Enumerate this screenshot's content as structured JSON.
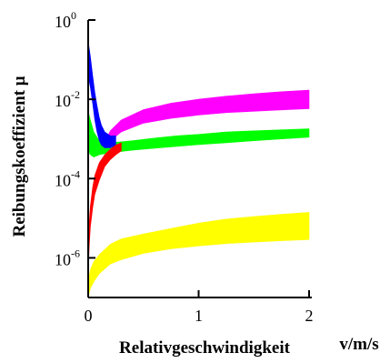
{
  "chart_data": {
    "type": "area",
    "title": "",
    "xlabel": "Relativgeschwindigkeit",
    "xunit": "v/m/s",
    "ylabel": "Reibungskoeffizient μ",
    "xlim": [
      0,
      2
    ],
    "ylim_log10": [
      -7,
      0
    ],
    "yscale": "log",
    "grid": false,
    "legend": "none",
    "x_ticks": [
      "0",
      "1",
      "2"
    ],
    "y_ticks": [
      {
        "base": "10",
        "exp": "0"
      },
      {
        "base": "10",
        "exp": "-2"
      },
      {
        "base": "10",
        "exp": "-4"
      },
      {
        "base": "10",
        "exp": "-6"
      }
    ],
    "series": [
      {
        "color": "#ff00ff",
        "x": [
          0.15,
          0.2,
          0.3,
          0.5,
          0.75,
          1.0,
          1.25,
          1.5,
          1.75,
          2.0
        ],
        "y_lower": [
          0.0006,
          0.0009,
          0.0015,
          0.0025,
          0.0033,
          0.004,
          0.0046,
          0.005,
          0.0054,
          0.0058
        ],
        "y_upper": [
          0.0008,
          0.0016,
          0.003,
          0.0055,
          0.008,
          0.01,
          0.012,
          0.0138,
          0.0155,
          0.017
        ]
      },
      {
        "color": "#00ff00",
        "x": [
          0.0,
          0.02,
          0.05,
          0.1,
          0.2,
          0.4,
          0.6,
          0.8,
          1.0,
          1.25,
          1.5,
          1.75,
          2.0
        ],
        "y_lower": [
          0.0005,
          0.0004,
          0.00035,
          0.0004,
          0.00045,
          0.00052,
          0.00058,
          0.00065,
          0.00072,
          0.0008,
          0.0009,
          0.001,
          0.0011
        ],
        "y_upper": [
          0.005,
          0.003,
          0.0015,
          0.0009,
          0.0008,
          0.0009,
          0.00105,
          0.0012,
          0.0013,
          0.0015,
          0.0016,
          0.0017,
          0.0018
        ]
      },
      {
        "color": "#0000ff",
        "x": [
          0.0,
          0.02,
          0.04,
          0.06,
          0.08,
          0.1,
          0.12,
          0.15,
          0.2,
          0.25
        ],
        "y_lower": [
          0.04,
          0.02,
          0.008,
          0.003,
          0.0015,
          0.0009,
          0.0007,
          0.0006,
          0.0006,
          0.0007
        ],
        "y_upper": [
          0.3,
          0.12,
          0.04,
          0.015,
          0.007,
          0.0035,
          0.0022,
          0.0015,
          0.0012,
          0.0012
        ]
      },
      {
        "color": "#ff0000",
        "x": [
          0.0,
          0.01,
          0.02,
          0.04,
          0.06,
          0.1,
          0.15,
          0.2,
          0.25,
          0.3
        ],
        "y_lower": [
          4e-07,
          2e-06,
          6e-06,
          1.8e-05,
          4e-05,
          9e-05,
          0.0002,
          0.0003,
          0.0004,
          0.0005
        ],
        "y_upper": [
          1e-06,
          8e-06,
          2e-05,
          6e-05,
          0.00012,
          0.00025,
          0.0004,
          0.00055,
          0.0007,
          0.0008
        ]
      },
      {
        "color": "#ffff00",
        "x": [
          0.0,
          0.01,
          0.02,
          0.05,
          0.1,
          0.2,
          0.3,
          0.5,
          0.75,
          1.0,
          1.25,
          1.5,
          1.75,
          2.0
        ],
        "y_lower": [
          1e-07,
          1.3e-07,
          1.7e-07,
          2.5e-07,
          4e-07,
          7e-07,
          9e-07,
          1.3e-06,
          1.7e-06,
          2e-06,
          2.3e-06,
          2.5e-06,
          2.7e-06,
          2.9e-06
        ],
        "y_upper": [
          2e-07,
          3.5e-07,
          5e-07,
          8e-07,
          1.2e-06,
          2.2e-06,
          3e-06,
          4e-06,
          5.5e-06,
          7.5e-06,
          9.5e-06,
          1.1e-05,
          1.25e-05,
          1.4e-05
        ]
      }
    ]
  }
}
